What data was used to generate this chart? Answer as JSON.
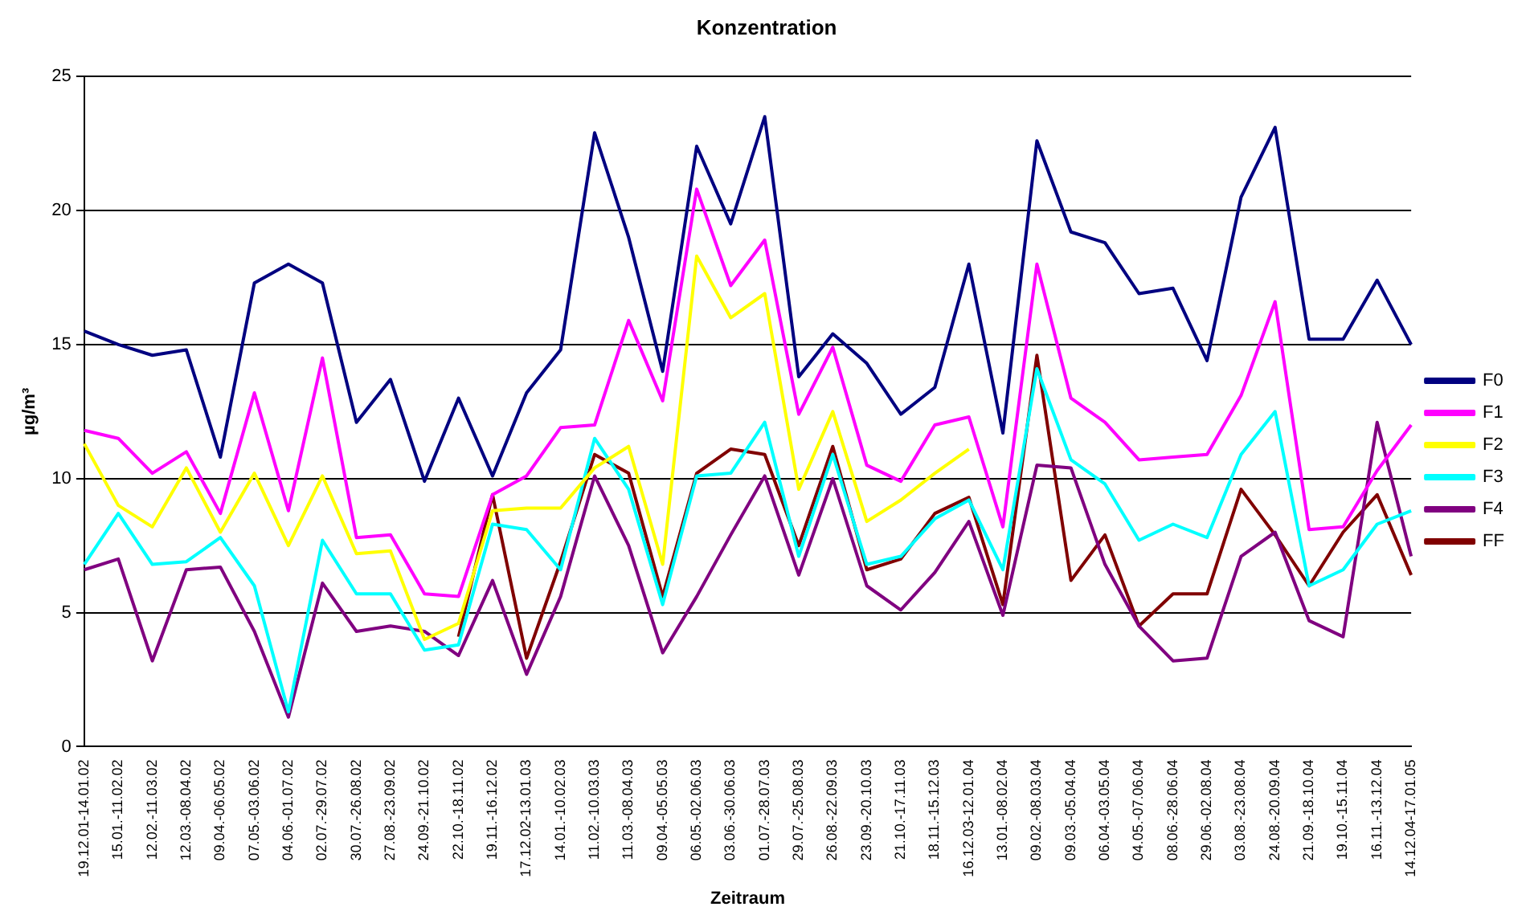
{
  "chart_data": {
    "type": "line",
    "title": "Konzentration",
    "xlabel": "Zeitraum",
    "ylabel": "µg/m³",
    "categories": [
      "19.12.01-14.01.02",
      "15.01.-11.02.02",
      "12.02.-11.03.02",
      "12.03.-08.04.02",
      "09.04.-06.05.02",
      "07.05.-03.06.02",
      "04.06.-01.07.02",
      "02.07.-29.07.02",
      "30.07.-26.08.02",
      "27.08.-23.09.02",
      "24.09.-21.10.02",
      "22.10.-18.11.02",
      "19.11.-16.12.02",
      "17.12.02-13.01.03",
      "14.01.-10.02.03",
      "11.02.-10.03.03",
      "11.03.-08.04.03",
      "09.04.-05.05.03",
      "06.05.-02.06.03",
      "03.06.-30.06.03",
      "01.07.-28.07.03",
      "29.07.-25.08.03",
      "26.08.-22.09.03",
      "23.09.-20.10.03",
      "21.10.-17.11.03",
      "18.11.-15.12.03",
      "16.12.03-12.01.04",
      "13.01.-08.02.04",
      "09.02.-08.03.04",
      "09.03.-05.04.04",
      "06.04.-03.05.04",
      "04.05.-07.06.04",
      "08.06.-28.06.04",
      "29.06.-02.08.04",
      "03.08.-23.08.04",
      "24.08.-20.09.04",
      "21.09.-18.10.04",
      "19.10.-15.11.04",
      "16.11.-13.12.04",
      "14.12.04-17.01.05"
    ],
    "series": [
      {
        "name": "F0",
        "color": "#000080",
        "values": [
          15.5,
          15,
          14.6,
          14.8,
          10.8,
          17.3,
          18,
          17.3,
          12.1,
          13.7,
          9.9,
          13,
          10.1,
          13.2,
          14.8,
          22.9,
          19,
          14,
          22.4,
          19.5,
          23.5,
          13.8,
          15.4,
          14.3,
          12.4,
          13.4,
          18,
          11.7,
          22.6,
          19.2,
          18.8,
          16.9,
          17.1,
          14.4,
          20.5,
          23.1,
          15.2,
          15.2,
          17.4,
          15
        ]
      },
      {
        "name": "F1",
        "color": "#ff00ff",
        "values": [
          11.8,
          11.5,
          10.2,
          11,
          8.7,
          13.2,
          8.8,
          14.5,
          7.8,
          7.9,
          5.7,
          5.6,
          9.4,
          10.1,
          11.9,
          12,
          15.9,
          12.9,
          20.8,
          17.2,
          18.9,
          12.4,
          14.9,
          10.5,
          9.9,
          12,
          12.3,
          8.2,
          18,
          13,
          12.1,
          10.7,
          10.8,
          10.9,
          13.1,
          16.6,
          8.1,
          8.2,
          10.3,
          12
        ]
      },
      {
        "name": "F2",
        "color": "#ffff00",
        "values": [
          11.3,
          9,
          8.2,
          10.4,
          8,
          10.2,
          7.5,
          10.1,
          7.2,
          7.3,
          4,
          4.6,
          8.8,
          8.9,
          8.9,
          10.4,
          11.2,
          6.8,
          18.3,
          16,
          16.9,
          9.6,
          12.5,
          8.4,
          9.2,
          10.2,
          11.1,
          null,
          null,
          null,
          null,
          null,
          null,
          null,
          null,
          null,
          null,
          null,
          null,
          null
        ]
      },
      {
        "name": "F3",
        "color": "#00ffff",
        "values": [
          6.8,
          8.7,
          6.8,
          6.9,
          7.8,
          6,
          1.3,
          7.7,
          5.7,
          5.7,
          3.6,
          3.8,
          8.3,
          8.1,
          6.6,
          11.5,
          9.6,
          5.3,
          10.1,
          10.2,
          12.1,
          7.1,
          10.9,
          6.8,
          7.1,
          8.5,
          9.2,
          6.6,
          14.1,
          10.7,
          9.8,
          7.7,
          8.3,
          7.8,
          10.9,
          12.5,
          6,
          6.6,
          8.3,
          8.8
        ]
      },
      {
        "name": "F4",
        "color": "#800080",
        "values": [
          6.6,
          7,
          3.2,
          6.6,
          6.7,
          4.3,
          1.1,
          6.1,
          4.3,
          4.5,
          4.3,
          3.4,
          6.2,
          2.7,
          5.6,
          10.1,
          7.5,
          3.5,
          5.6,
          7.9,
          10.1,
          6.4,
          10,
          6,
          5.1,
          6.5,
          8.4,
          4.9,
          10.5,
          10.4,
          6.8,
          4.5,
          3.2,
          3.3,
          7.1,
          8,
          4.7,
          4.1,
          12.1,
          7.1
        ]
      },
      {
        "name": "FF",
        "color": "#800000",
        "values": [
          null,
          null,
          null,
          null,
          null,
          null,
          null,
          null,
          null,
          null,
          null,
          4.1,
          9.4,
          3.3,
          6.9,
          10.9,
          10.2,
          5.6,
          10.2,
          11.1,
          10.9,
          7.5,
          11.2,
          6.6,
          7,
          8.7,
          9.3,
          5.3,
          14.6,
          6.2,
          7.9,
          4.5,
          5.7,
          5.7,
          9.6,
          7.9,
          6,
          8,
          9.4,
          6.4
        ]
      }
    ],
    "ylim": [
      0,
      25
    ],
    "yticks": [
      0,
      5,
      10,
      15,
      20,
      25
    ],
    "grid": "y",
    "legend": "right",
    "marker": "none"
  }
}
